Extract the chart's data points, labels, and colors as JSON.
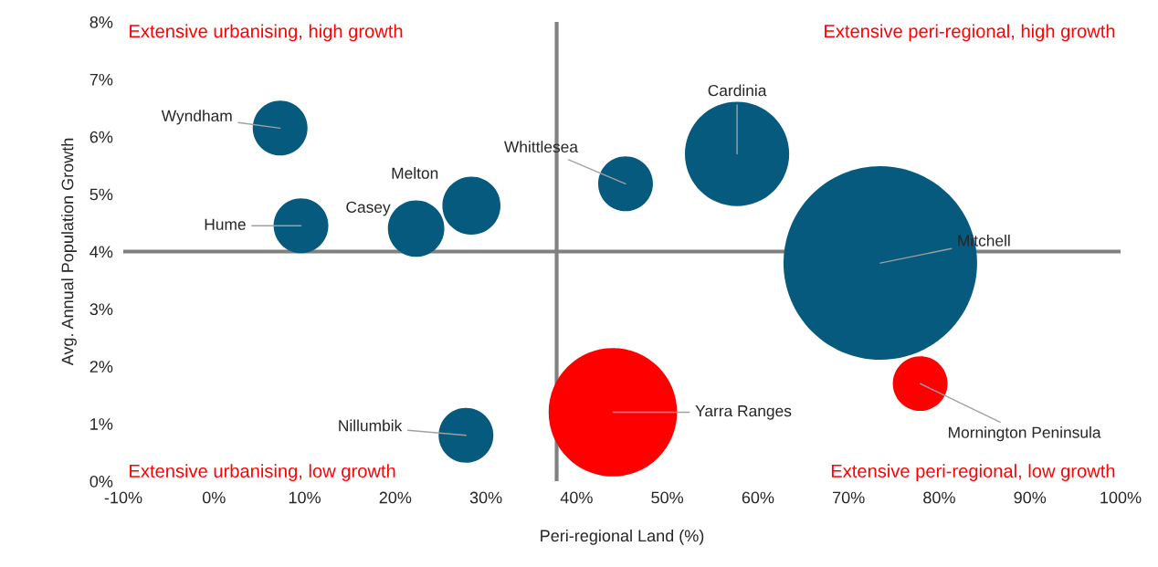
{
  "chart_data": {
    "type": "bubble",
    "xlabel": "Peri-regional Land (%)",
    "ylabel": "Avg. Annual Population Growth",
    "xlim": [
      -10,
      100
    ],
    "xticks": [
      {
        "value": -10,
        "label": "-10%"
      },
      {
        "value": 0,
        "label": "0%"
      },
      {
        "value": 10,
        "label": "10%"
      },
      {
        "value": 20,
        "label": "20%"
      },
      {
        "value": 30,
        "label": "30%"
      },
      {
        "value": 40,
        "label": "40%"
      },
      {
        "value": 50,
        "label": "50%"
      },
      {
        "value": 60,
        "label": "60%"
      },
      {
        "value": 70,
        "label": "70%"
      },
      {
        "value": 80,
        "label": "80%"
      },
      {
        "value": 90,
        "label": "90%"
      },
      {
        "value": 100,
        "label": "100%"
      }
    ],
    "ylim": [
      0,
      8
    ],
    "yticks": [
      {
        "value": 0,
        "label": "0%"
      },
      {
        "value": 1,
        "label": "1%"
      },
      {
        "value": 2,
        "label": "2%"
      },
      {
        "value": 3,
        "label": "3%"
      },
      {
        "value": 4,
        "label": "4%"
      },
      {
        "value": 5,
        "label": "5%"
      },
      {
        "value": 6,
        "label": "6%"
      },
      {
        "value": 7,
        "label": "7%"
      },
      {
        "value": 8,
        "label": "8%"
      }
    ],
    "grid": false,
    "legend": false,
    "ref_lines": [
      {
        "axis": "x",
        "value": 37.8,
        "color": "#808080"
      },
      {
        "axis": "y",
        "value": 4,
        "color": "#808080"
      }
    ],
    "annotations": [
      "Extensive urbanising, high growth",
      "Extensive peri-regional, high growth",
      "Extensive urbanising, low growth",
      "Extensive peri-regional, low growth"
    ],
    "series": [
      {
        "name": "Wyndham",
        "color": "#065a7d",
        "x": [
          7.3
        ],
        "values": [
          6.15
        ],
        "sizes": [
          0.08
        ]
      },
      {
        "name": "Hume",
        "color": "#065a7d",
        "x": [
          9.6
        ],
        "values": [
          4.45
        ],
        "sizes": [
          0.08
        ]
      },
      {
        "name": "Casey",
        "color": "#065a7d",
        "x": [
          22.3
        ],
        "values": [
          4.4
        ],
        "sizes": [
          0.085
        ]
      },
      {
        "name": "Melton",
        "color": "#065a7d",
        "x": [
          28.4
        ],
        "values": [
          4.8
        ],
        "sizes": [
          0.09
        ]
      },
      {
        "name": "Nillumbik",
        "color": "#065a7d",
        "x": [
          27.8
        ],
        "values": [
          0.8
        ],
        "sizes": [
          0.08
        ]
      },
      {
        "name": "Whittlesea",
        "color": "#065a7d",
        "x": [
          45.4
        ],
        "values": [
          5.18
        ],
        "sizes": [
          0.08
        ]
      },
      {
        "name": "Cardinia",
        "color": "#065a7d",
        "x": [
          57.7
        ],
        "values": [
          5.7
        ],
        "sizes": [
          0.29
        ]
      },
      {
        "name": "Mitchell",
        "color": "#065a7d",
        "x": [
          73.5
        ],
        "values": [
          3.8
        ],
        "sizes": [
          1
        ]
      },
      {
        "name": "Yarra Ranges",
        "color": "#ff0000",
        "x": [
          44.0
        ],
        "values": [
          1.2
        ],
        "sizes": [
          0.44
        ]
      },
      {
        "name": "Mornington Peninsula",
        "color": "#ff0000",
        "x": [
          77.9
        ],
        "values": [
          1.7
        ],
        "sizes": [
          0.08
        ]
      }
    ]
  }
}
